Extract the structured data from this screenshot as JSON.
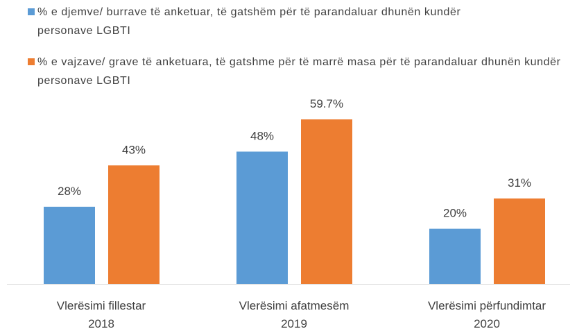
{
  "chart_data": {
    "type": "bar",
    "categories": [
      [
        "Vlerësimi fillestar",
        "2018"
      ],
      [
        "Vlerësimi afatmesëm",
        "2019"
      ],
      [
        "Vlerësimi përfundimtar",
        "2020"
      ]
    ],
    "series": [
      {
        "name": "% e djemve/ burrave të anketuar, të gatshëm për të parandaluar dhunën kundër personave LGBTI",
        "color": "#5b9bd5",
        "values": [
          28,
          48,
          20
        ],
        "value_labels": [
          "28%",
          "48%",
          "20%"
        ]
      },
      {
        "name": "% e vajzave/ grave të anketuara, të gatshme për të marrë masa për të parandaluar dhunën kundër personave LGBTI",
        "color": "#ed7d31",
        "values": [
          43,
          59.7,
          31
        ],
        "value_labels": [
          "43%",
          "59.7%",
          "31%"
        ]
      }
    ]
  }
}
